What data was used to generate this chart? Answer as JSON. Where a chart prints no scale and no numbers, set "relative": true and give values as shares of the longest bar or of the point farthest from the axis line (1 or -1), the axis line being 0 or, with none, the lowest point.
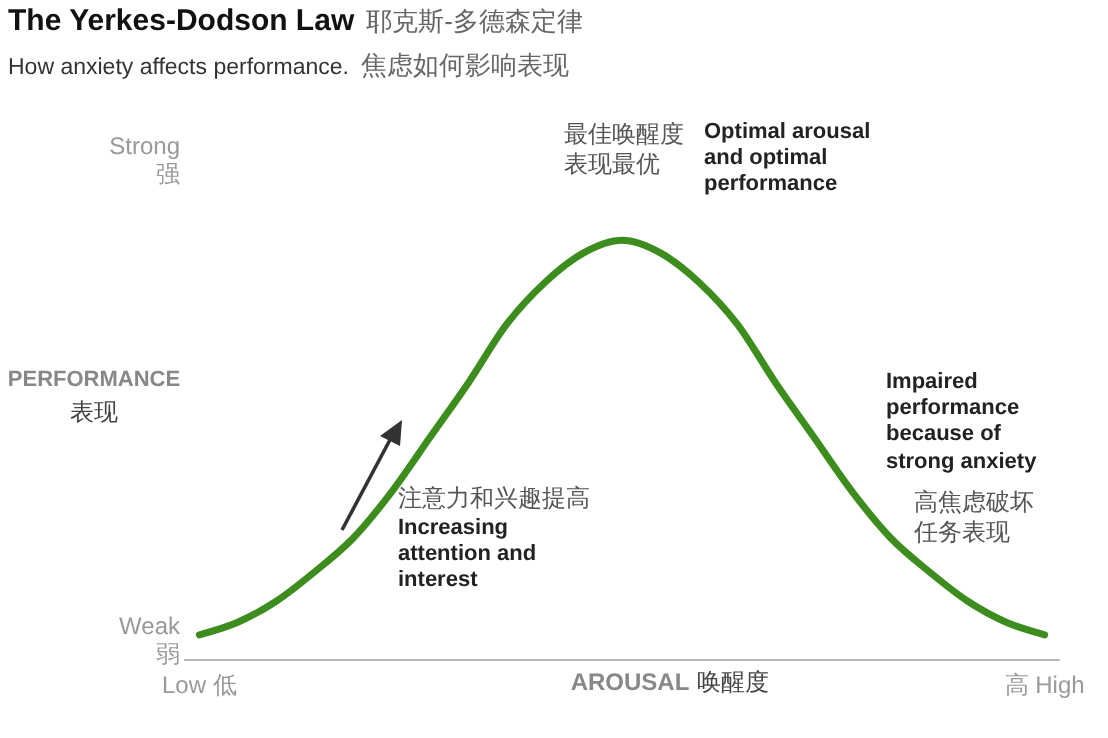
{
  "chart_data": {
    "type": "line",
    "title": "The Yerkes-Dodson Law 耶克斯-多德森定律",
    "subtitle": "How anxiety affects performance. 焦虑如何影响表现",
    "xlabel": "AROUSAL 唤醒度",
    "ylabel": "PERFORMANCE 表现",
    "relative": true,
    "marker": "none",
    "line_style": "solid",
    "categories": [
      "Low 低",
      null,
      null,
      null,
      null,
      null,
      null,
      null,
      null,
      null,
      null,
      null,
      null,
      null,
      null,
      null,
      null,
      null,
      null,
      null,
      null,
      null,
      "高 High"
    ],
    "series": [
      {
        "color": "#3c8c1e",
        "values": [
          0.06,
          0.09,
          0.14,
          0.21,
          0.29,
          0.4,
          0.53,
          0.66,
          0.8,
          0.9,
          0.97,
          1,
          0.97,
          0.9,
          0.8,
          0.66,
          0.53,
          0.4,
          0.29,
          0.21,
          0.14,
          0.09,
          0.06
        ]
      }
    ],
    "annotations": [
      "Strong\n强",
      "Weak\n弱",
      "最佳唤醒度",
      "表现最优",
      "Optimal arousal\nand optimal\nperformance",
      "注意力和兴趣提高",
      "Increasing\nattention and\ninterest",
      "Impaired\nperformance\nbecause of\nstrong anxiety",
      "高焦虑破坏",
      "任务表现"
    ]
  }
}
